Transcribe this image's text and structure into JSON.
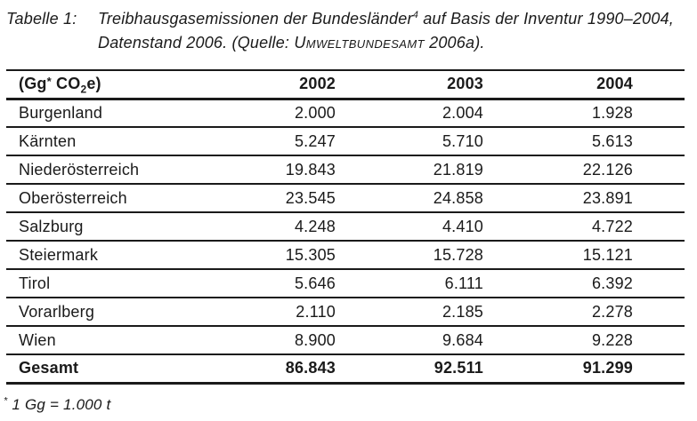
{
  "caption": {
    "label": "Tabelle 1:",
    "line1": {
      "text": "Treibhausgasemissionen der Bundesländer",
      "sup": "4",
      "rest": " auf Basis der Inventur 1990–2004,"
    },
    "line2": {
      "pre": "Datenstand 2006. (Quelle: ",
      "smallcaps": "Umweltbundesamt",
      "rest": " 2006a)."
    }
  },
  "table": {
    "unit": {
      "pre": "(Gg",
      "sup": "*",
      "mid": " CO",
      "sub": "2",
      "post": "e)"
    },
    "columns": [
      "2002",
      "2003",
      "2004"
    ],
    "rows": [
      {
        "label": "Burgenland",
        "values": [
          "2.000",
          "2.004",
          "1.928"
        ]
      },
      {
        "label": "Kärnten",
        "values": [
          "5.247",
          "5.710",
          "5.613"
        ]
      },
      {
        "label": "Niederösterreich",
        "values": [
          "19.843",
          "21.819",
          "22.126"
        ]
      },
      {
        "label": "Oberösterreich",
        "values": [
          "23.545",
          "24.858",
          "23.891"
        ]
      },
      {
        "label": "Salzburg",
        "values": [
          "4.248",
          "4.410",
          "4.722"
        ]
      },
      {
        "label": "Steiermark",
        "values": [
          "15.305",
          "15.728",
          "15.121"
        ]
      },
      {
        "label": "Tirol",
        "values": [
          "5.646",
          "6.111",
          "6.392"
        ]
      },
      {
        "label": "Vorarlberg",
        "values": [
          "2.110",
          "2.185",
          "2.278"
        ]
      },
      {
        "label": "Wien",
        "values": [
          "8.900",
          "9.684",
          "9.228"
        ]
      }
    ],
    "total": {
      "label": "Gesamt",
      "values": [
        "86.843",
        "92.511",
        "91.299"
      ]
    }
  },
  "footnote": {
    "sup": "*",
    "text": " 1 Gg = 1.000 t"
  }
}
